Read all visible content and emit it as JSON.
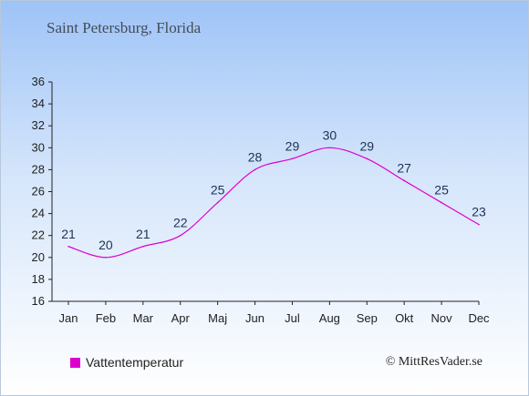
{
  "title": "Saint Petersburg, Florida",
  "credit": "© MittResVader.se",
  "colors": {
    "series": "#dd00cc",
    "axis": "#222222",
    "label": "#1c3255"
  },
  "chart_data": {
    "type": "line",
    "title": "Saint Petersburg, Florida",
    "xlabel": "",
    "ylabel": "",
    "categories": [
      "Jan",
      "Feb",
      "Mar",
      "Apr",
      "Maj",
      "Jun",
      "Jul",
      "Aug",
      "Sep",
      "Okt",
      "Nov",
      "Dec"
    ],
    "yticks": [
      16,
      18,
      20,
      22,
      24,
      26,
      28,
      30,
      32,
      34,
      36
    ],
    "ylim": [
      16,
      36
    ],
    "grid": false,
    "legend_position": "bottom-left",
    "series": [
      {
        "name": "Vattentemperatur",
        "values": [
          21,
          20,
          21,
          22,
          25,
          28,
          29,
          30,
          29,
          27,
          25,
          23
        ]
      }
    ]
  }
}
